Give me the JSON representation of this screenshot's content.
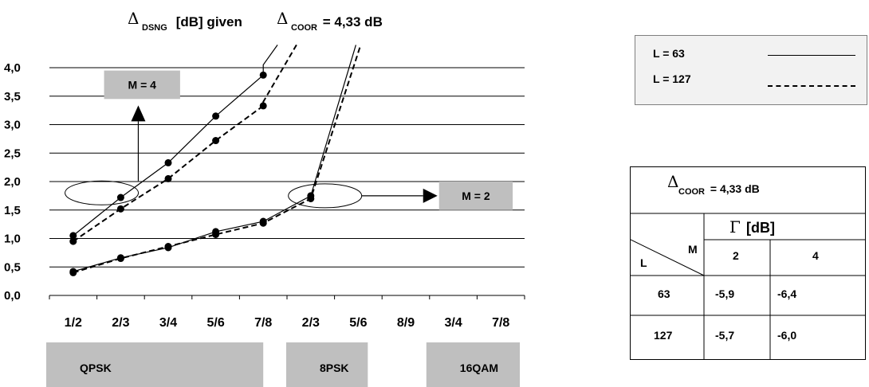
{
  "chart_data": {
    "type": "line",
    "title": {
      "prefix": "Δ",
      "prefix_sub": "DSNG",
      "middle": " [dB] given ",
      "suffix": "Δ",
      "suffix_sub": "COOR",
      "end": " = 4,33 dB"
    },
    "y_ticks": [
      "4,0",
      "3,5",
      "3,0",
      "2,5",
      "2,0",
      "1,5",
      "1,0",
      "0,5",
      "0,0"
    ],
    "ylim": [
      0,
      4
    ],
    "x_ticks": [
      "1/2",
      "2/3",
      "3/4",
      "5/6",
      "7/8",
      "2/3",
      "5/6",
      "8/9",
      "3/4",
      "7/8"
    ],
    "grid": true,
    "series": [
      {
        "name": "L = 63",
        "group": "M = 4",
        "style": "solid",
        "x": [
          0,
          1,
          2,
          3,
          4
        ],
        "y": [
          1.05,
          1.72,
          2.33,
          3.15,
          3.87
        ],
        "tail": [
          [
            4.0,
            4.05
          ],
          [
            4.3,
            4.4
          ]
        ]
      },
      {
        "name": "L = 127",
        "group": "M = 4",
        "style": "dashed",
        "x": [
          0,
          1,
          2,
          3,
          4
        ],
        "y": [
          0.95,
          1.52,
          2.05,
          2.72,
          3.33
        ],
        "tail": [
          [
            4.0,
            3.4
          ],
          [
            4.7,
            4.4
          ]
        ]
      },
      {
        "name": "L = 63",
        "group": "M = 2",
        "style": "solid",
        "x": [
          0,
          1,
          2,
          3,
          4,
          5
        ],
        "y": [
          0.42,
          0.66,
          0.84,
          1.12,
          1.3,
          1.75
        ],
        "tail": [
          [
            5.95,
            4.4
          ]
        ]
      },
      {
        "name": "L = 127",
        "group": "M = 2",
        "style": "dashed",
        "x": [
          0,
          1,
          2,
          3,
          4,
          5
        ],
        "y": [
          0.4,
          0.65,
          0.86,
          1.07,
          1.27,
          1.7
        ],
        "tail": [
          [
            6.05,
            4.4
          ]
        ]
      }
    ],
    "callouts": [
      {
        "label": "M = 4",
        "ellipse": [
          0.6,
          1.8
        ],
        "box_x": [
          0.65,
          2.25
        ],
        "box_y": [
          3.45,
          3.95
        ]
      },
      {
        "label": "M = 2",
        "ellipse": [
          5.3,
          1.75
        ],
        "box_x": [
          7.7,
          9.25
        ],
        "box_y": [
          1.5,
          2.0
        ]
      }
    ],
    "groups": [
      {
        "label": "QPSK",
        "span": [
          0,
          4.5
        ]
      },
      {
        "label": "8PSK",
        "span": [
          5.05,
          6.7
        ]
      },
      {
        "label": "16QAM",
        "span": [
          8.0,
          9.9
        ]
      }
    ]
  },
  "legend": {
    "items": [
      {
        "label": "L = 63",
        "style": "solid"
      },
      {
        "label": "L = 127",
        "style": "dashed"
      }
    ]
  },
  "table": {
    "header_symbol": "Δ",
    "header_sub": "COOR",
    "header_value": " = 4,33 dB",
    "gamma_symbol": "Γ",
    "gamma_unit": " [dB]",
    "corner_L": "L",
    "corner_M": "M",
    "col_headers": [
      "2",
      "4"
    ],
    "rows": [
      {
        "L": "63",
        "values": [
          "-5,9",
          "-6,4"
        ]
      },
      {
        "L": "127",
        "values": [
          "-5,7",
          "-6,0"
        ]
      }
    ]
  }
}
